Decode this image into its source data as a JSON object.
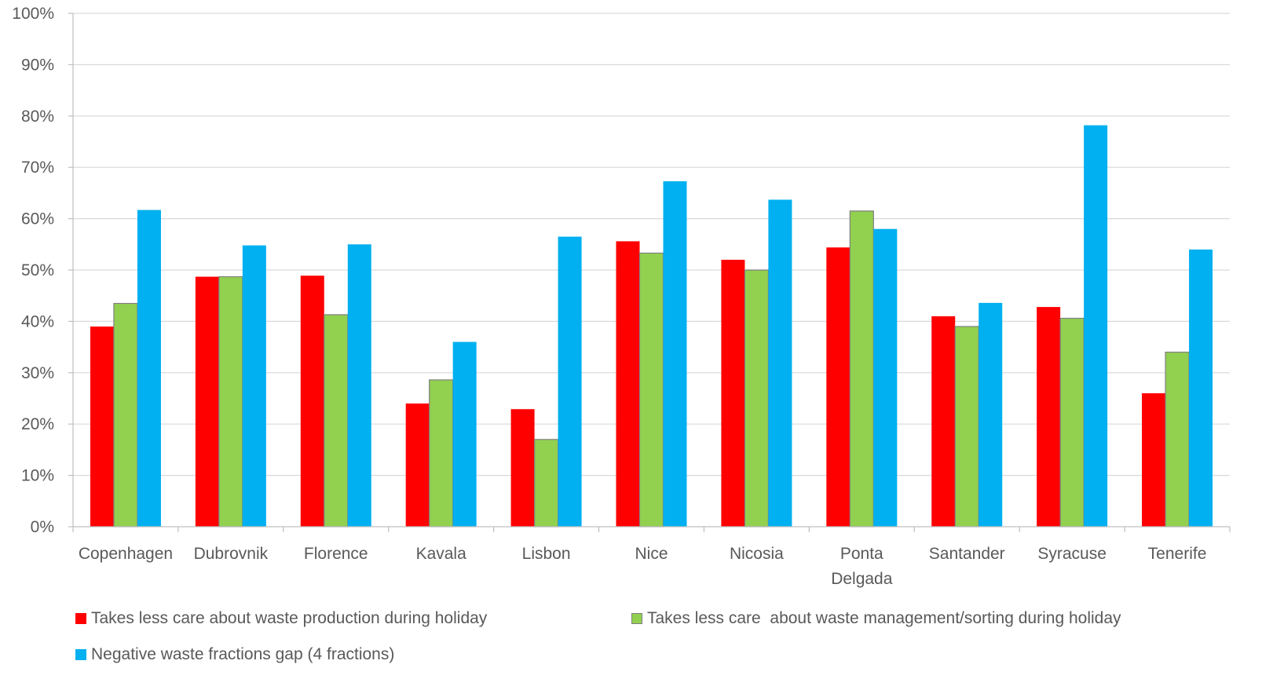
{
  "chart_data": {
    "type": "bar",
    "title": "",
    "xlabel": "",
    "ylabel": "",
    "ylim": [
      0,
      100
    ],
    "y_ticks": [
      "0%",
      "10%",
      "20%",
      "30%",
      "40%",
      "50%",
      "60%",
      "70%",
      "80%",
      "90%",
      "100%"
    ],
    "grid": true,
    "legend_position": "bottom",
    "categories": [
      "Copenhagen",
      "Dubrovnik",
      "Florence",
      "Kavala",
      "Lisbon",
      "Nice",
      "Nicosia",
      "Ponta Delgada",
      "Santander",
      "Syracuse",
      "Tenerife"
    ],
    "series": [
      {
        "name": "Takes less care about waste production during holiday",
        "color": "#ff0000",
        "values": [
          39,
          48.7,
          48.9,
          24,
          22.9,
          55.6,
          52,
          54.4,
          41,
          42.8,
          26
        ]
      },
      {
        "name": "Takes less care  about waste management/sorting during holiday",
        "color": "#92d050",
        "values": [
          43.5,
          48.7,
          41.3,
          28.6,
          17,
          53.3,
          50,
          61.5,
          39,
          40.6,
          34
        ]
      },
      {
        "name": "Negative waste fractions gap (4 fractions)",
        "color": "#00b0f0",
        "values": [
          61.7,
          54.8,
          55,
          36,
          56.5,
          67.3,
          63.7,
          58,
          43.6,
          78.2,
          54
        ]
      }
    ]
  }
}
